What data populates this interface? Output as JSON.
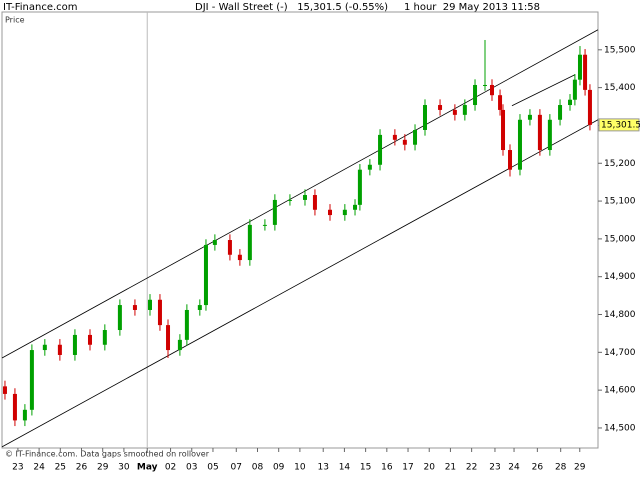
{
  "chart_data": {
    "type": "candlestick",
    "site": "IT-Finance.com",
    "title": "DJI - Wall Street (-)   15,301.5 (-0.55%)     1 hour  29 May 2013 11:58",
    "ylabel": "Price",
    "footnote": "© IT-Finance.com. Data gaps smoothed on rollover",
    "up_color": "#00a000",
    "down_color": "#d00000",
    "xlim": [
      -0.75,
      27.36
    ],
    "ylim": [
      14447,
      15600
    ],
    "xticks": [
      {
        "value": 0,
        "label": "23"
      },
      {
        "value": 1,
        "label": "24"
      },
      {
        "value": 2,
        "label": "25"
      },
      {
        "value": 3,
        "label": "26"
      },
      {
        "value": 4,
        "label": "29"
      },
      {
        "value": 5,
        "label": "30"
      },
      {
        "value": 6.1,
        "label": "May"
      },
      {
        "value": 7.2,
        "label": "02"
      },
      {
        "value": 8.2,
        "label": "03"
      },
      {
        "value": 9.2,
        "label": "05"
      },
      {
        "value": 10.3,
        "label": "07"
      },
      {
        "value": 11.3,
        "label": "08"
      },
      {
        "value": 12.3,
        "label": "09"
      },
      {
        "value": 13.3,
        "label": "10"
      },
      {
        "value": 14.4,
        "label": "13"
      },
      {
        "value": 15.4,
        "label": "14"
      },
      {
        "value": 16.4,
        "label": "15"
      },
      {
        "value": 17.4,
        "label": "16"
      },
      {
        "value": 18.4,
        "label": "17"
      },
      {
        "value": 19.4,
        "label": "20"
      },
      {
        "value": 20.4,
        "label": "21"
      },
      {
        "value": 21.4,
        "label": "22"
      },
      {
        "value": 22.5,
        "label": "23"
      },
      {
        "value": 23.4,
        "label": "24"
      },
      {
        "value": 24.5,
        "label": "26"
      },
      {
        "value": 25.6,
        "label": "28"
      },
      {
        "value": 26.5,
        "label": "29"
      }
    ],
    "month_line": {
      "value": 6.1
    },
    "yticks": [
      {
        "value": 14500,
        "label": "14,500"
      },
      {
        "value": 14600,
        "label": "14,600"
      },
      {
        "value": 14700,
        "label": "14,700"
      },
      {
        "value": 14800,
        "label": "14,800"
      },
      {
        "value": 14900,
        "label": "14,900"
      },
      {
        "value": 15000,
        "label": "15,000"
      },
      {
        "value": 15100,
        "label": "15,100"
      },
      {
        "value": 15200,
        "label": "15,200"
      },
      {
        "value": 15300,
        "label": "15,300"
      },
      {
        "value": 15400,
        "label": "15,400"
      },
      {
        "value": 15500,
        "label": "15,500"
      }
    ],
    "last_price": {
      "value": 15301.5,
      "label": "15,301.5"
    },
    "x": [
      -0.61,
      -0.14,
      0.33,
      0.66,
      1.27,
      1.98,
      2.69,
      3.4,
      4.1,
      4.81,
      5.52,
      6.23,
      6.7,
      7.08,
      7.64,
      7.97,
      8.58,
      8.87,
      9.29,
      10.0,
      10.47,
      10.94,
      11.65,
      12.12,
      12.83,
      13.54,
      14.01,
      14.72,
      15.42,
      15.9,
      16.13,
      16.6,
      17.08,
      17.78,
      18.25,
      18.73,
      19.2,
      19.91,
      20.61,
      21.08,
      21.56,
      22.03,
      22.36,
      22.74,
      22.88,
      23.21,
      23.68,
      24.15,
      24.62,
      25.09,
      25.57,
      26.04,
      26.27,
      26.51,
      26.75,
      26.98
    ],
    "open": [
      14610,
      14590,
      14520,
      14548,
      14706,
      14720,
      14693,
      14746,
      14720,
      14759,
      14825,
      14812,
      14839,
      14772,
      14706,
      14733,
      14812,
      14825,
      14984,
      14997,
      14958,
      14944,
      15037,
      15037,
      15103,
      15103,
      15116,
      15077,
      15063,
      15077,
      15090,
      15183,
      15196,
      15275,
      15262,
      15249,
      15288,
      15354,
      15341,
      15328,
      15354,
      15407,
      15407,
      15380,
      15341,
      15235,
      15183,
      15315,
      15328,
      15235,
      15315,
      15354,
      15368,
      15421,
      15487,
      15394
    ],
    "high": [
      14625,
      14605,
      14563,
      14721,
      14735,
      14735,
      14761,
      14761,
      14774,
      14840,
      14840,
      14854,
      14854,
      14787,
      14748,
      14827,
      14840,
      14999,
      15012,
      15012,
      14973,
      15052,
      15052,
      15118,
      15118,
      15131,
      15131,
      15092,
      15092,
      15105,
      15198,
      15211,
      15290,
      15290,
      15277,
      15303,
      15369,
      15369,
      15356,
      15369,
      15422,
      15526,
      15422,
      15395,
      15356,
      15250,
      15330,
      15343,
      15343,
      15330,
      15369,
      15383,
      15436,
      15510,
      15502,
      15409
    ],
    "low": [
      14575,
      14505,
      14505,
      14533,
      14691,
      14678,
      14678,
      14705,
      14705,
      14744,
      14797,
      14797,
      14757,
      14685,
      14691,
      14718,
      14797,
      14810,
      14969,
      14943,
      14929,
      14929,
      15022,
      15022,
      15088,
      15088,
      15062,
      15048,
      15048,
      15062,
      15075,
      15168,
      15181,
      15247,
      15234,
      15234,
      15273,
      15326,
      15313,
      15313,
      15339,
      15392,
      15365,
      15326,
      15220,
      15165,
      15168,
      15300,
      15220,
      15220,
      15300,
      15339,
      15353,
      15406,
      15379,
      15287
    ],
    "close": [
      14590,
      14520,
      14548,
      14706,
      14720,
      14693,
      14746,
      14720,
      14759,
      14825,
      14812,
      14839,
      14772,
      14706,
      14733,
      14812,
      14825,
      14984,
      14997,
      14958,
      14944,
      15037,
      15037,
      15103,
      15103,
      15116,
      15077,
      15063,
      15077,
      15090,
      15183,
      15196,
      15275,
      15262,
      15249,
      15288,
      15354,
      15341,
      15328,
      15354,
      15407,
      15407,
      15380,
      15341,
      15235,
      15183,
      15315,
      15328,
      15235,
      15315,
      15354,
      15368,
      15421,
      15487,
      15394,
      15301.5
    ],
    "trendlines": [
      {
        "x": [
          -0.75,
          27.36
        ],
        "y": [
          14685,
          15553
        ]
      },
      {
        "x": [
          -0.75,
          27.36
        ],
        "y": [
          14450,
          15315
        ]
      },
      {
        "x": [
          23.3,
          26.27
        ],
        "y": [
          15352,
          15434
        ]
      }
    ]
  }
}
